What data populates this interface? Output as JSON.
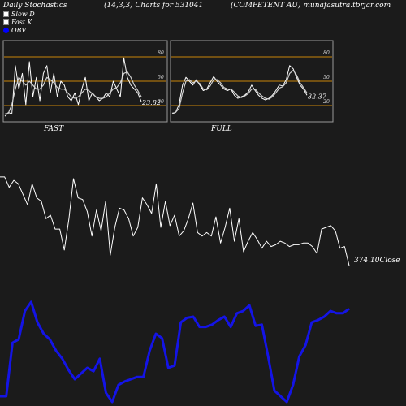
{
  "header": {
    "title": "Daily Stochastics",
    "params": "(14,3,3) Charts for 531041",
    "company": "(COMPETENT AU) munafasutra.tbrjar.com"
  },
  "legend": [
    {
      "label": "Slow  D",
      "color": "#ffffff"
    },
    {
      "label": "Fast K",
      "color": "#ffffff"
    },
    {
      "label": "OBV",
      "color": "#0000ff"
    }
  ],
  "chart_data": [
    {
      "type": "line",
      "panel": "FAST",
      "label": "FAST",
      "ylim": [
        0,
        100
      ],
      "levels": [
        20,
        50,
        80
      ],
      "tick_labels": [
        "80",
        "50",
        "20"
      ],
      "last_value_label": "23.82",
      "series": [
        {
          "name": "Fast K",
          "values": [
            5,
            10,
            8,
            70,
            40,
            60,
            20,
            75,
            30,
            55,
            25,
            60,
            70,
            35,
            60,
            30,
            50,
            45,
            30,
            25,
            35,
            20,
            40,
            55,
            25,
            35,
            30,
            25,
            28,
            35,
            30,
            50,
            40,
            30,
            80,
            55,
            45,
            40,
            35,
            24
          ]
        },
        {
          "name": "Slow  D",
          "values": [
            8,
            9,
            20,
            40,
            55,
            50,
            45,
            50,
            45,
            40,
            40,
            45,
            55,
            52,
            48,
            42,
            40,
            40,
            35,
            30,
            28,
            30,
            35,
            40,
            38,
            34,
            30,
            28,
            28,
            30,
            35,
            40,
            42,
            48,
            60,
            62,
            55,
            45,
            38,
            30
          ]
        }
      ]
    },
    {
      "type": "line",
      "panel": "FULL",
      "label": "FULL",
      "ylim": [
        0,
        100
      ],
      "levels": [
        20,
        50,
        80
      ],
      "tick_labels": [
        "80",
        "50",
        "20"
      ],
      "last_value_label": "32.37",
      "series": [
        {
          "name": "Fast K",
          "values": [
            8,
            10,
            20,
            45,
            55,
            50,
            45,
            52,
            45,
            38,
            40,
            48,
            56,
            50,
            45,
            40,
            38,
            40,
            32,
            28,
            30,
            32,
            36,
            45,
            38,
            32,
            28,
            26,
            28,
            32,
            38,
            45,
            44,
            52,
            70,
            66,
            55,
            45,
            40,
            32
          ]
        },
        {
          "name": "Slow  D",
          "values": [
            9,
            10,
            15,
            35,
            50,
            52,
            48,
            50,
            47,
            40,
            39,
            44,
            52,
            52,
            48,
            42,
            40,
            40,
            36,
            31,
            29,
            31,
            34,
            40,
            40,
            35,
            31,
            28,
            27,
            30,
            35,
            41,
            43,
            48,
            60,
            64,
            58,
            48,
            42,
            35
          ]
        }
      ]
    },
    {
      "type": "line",
      "panel": "price",
      "ylim": [
        360,
        430
      ],
      "last_value_label": "374.10",
      "close_label": "Close",
      "series": [
        {
          "name": "Close",
          "values": [
            424,
            424,
            418,
            422,
            420,
            414,
            408,
            420,
            412,
            410,
            400,
            402,
            394,
            394,
            382,
            400,
            423,
            412,
            411,
            404,
            390,
            405,
            393,
            410,
            379,
            395,
            406,
            405,
            400,
            390,
            395,
            412,
            408,
            403,
            420,
            395,
            410,
            396,
            402,
            390,
            393,
            400,
            409,
            392,
            390,
            392,
            390,
            401,
            386,
            395,
            406,
            387,
            400,
            381,
            387,
            392,
            388,
            383,
            387,
            384,
            385,
            387,
            386,
            384,
            385,
            385,
            386,
            386,
            384,
            380,
            394,
            395,
            396,
            393,
            383,
            384,
            373
          ]
        }
      ]
    },
    {
      "type": "line",
      "panel": "OBV",
      "ylim": [
        0,
        100
      ],
      "series": [
        {
          "name": "OBV",
          "values": [
            5,
            5,
            52,
            55,
            80,
            88,
            70,
            60,
            55,
            45,
            38,
            28,
            20,
            25,
            30,
            27,
            38,
            8,
            0,
            15,
            18,
            20,
            22,
            22,
            45,
            60,
            56,
            30,
            32,
            70,
            74,
            75,
            66,
            66,
            68,
            72,
            75,
            66,
            78,
            80,
            85,
            67,
            68,
            40,
            10,
            5,
            0,
            15,
            40,
            50,
            70,
            72,
            75,
            80,
            78,
            78,
            82
          ]
        }
      ]
    }
  ]
}
